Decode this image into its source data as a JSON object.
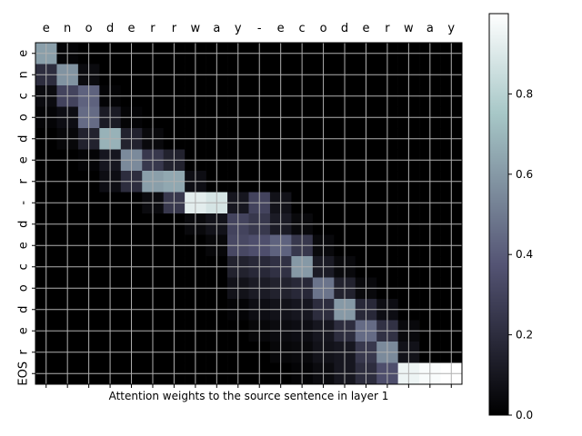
{
  "chart_data": {
    "type": "heatmap",
    "title": "",
    "xlabel": "Attention weights to the source sentence in layer 1",
    "ylabel": "",
    "x_tick_labels": [
      "e",
      "n",
      "o",
      "d",
      "e",
      "r",
      "r",
      "w",
      "a",
      "y",
      "-",
      "e",
      "c",
      "o",
      "d",
      "e",
      "r",
      "w",
      "a",
      "y"
    ],
    "y_tick_labels": [
      "e",
      "n",
      "c",
      "o",
      "d",
      "e",
      "r",
      "-",
      "d",
      "e",
      "c",
      "o",
      "d",
      "e",
      "r",
      "EOS"
    ],
    "colormap": "bone",
    "colorbar": {
      "range": [
        0.0,
        1.0
      ],
      "ticks": [
        "0.0",
        "0.2",
        "0.4",
        "0.6",
        "0.8"
      ]
    },
    "grid": true,
    "values": [
      [
        0.62,
        0.02,
        0.0,
        0.0,
        0.0,
        0.0,
        0.0,
        0.0,
        0.0,
        0.0,
        0.0,
        0.0,
        0.0,
        0.0,
        0.0,
        0.0,
        0.0,
        0.0,
        0.0,
        0.0
      ],
      [
        0.2,
        0.58,
        0.05,
        0.0,
        0.0,
        0.0,
        0.0,
        0.0,
        0.0,
        0.0,
        0.0,
        0.0,
        0.0,
        0.0,
        0.0,
        0.0,
        0.0,
        0.0,
        0.0,
        0.0
      ],
      [
        0.05,
        0.3,
        0.42,
        0.02,
        0.0,
        0.0,
        0.0,
        0.0,
        0.0,
        0.0,
        0.0,
        0.0,
        0.0,
        0.0,
        0.0,
        0.0,
        0.0,
        0.0,
        0.0,
        0.0
      ],
      [
        0.02,
        0.06,
        0.45,
        0.12,
        0.02,
        0.0,
        0.0,
        0.0,
        0.0,
        0.0,
        0.0,
        0.0,
        0.0,
        0.0,
        0.0,
        0.0,
        0.0,
        0.0,
        0.0,
        0.0
      ],
      [
        0.0,
        0.03,
        0.15,
        0.68,
        0.15,
        0.04,
        0.0,
        0.0,
        0.0,
        0.0,
        0.0,
        0.0,
        0.0,
        0.0,
        0.0,
        0.0,
        0.0,
        0.0,
        0.0,
        0.0
      ],
      [
        0.0,
        0.0,
        0.02,
        0.1,
        0.55,
        0.25,
        0.15,
        0.0,
        0.0,
        0.0,
        0.0,
        0.0,
        0.0,
        0.0,
        0.0,
        0.0,
        0.0,
        0.0,
        0.0,
        0.0
      ],
      [
        0.0,
        0.0,
        0.0,
        0.06,
        0.2,
        0.62,
        0.65,
        0.06,
        0.0,
        0.0,
        0.0,
        0.0,
        0.0,
        0.0,
        0.0,
        0.0,
        0.0,
        0.0,
        0.0,
        0.0
      ],
      [
        0.0,
        0.0,
        0.0,
        0.0,
        0.0,
        0.05,
        0.25,
        0.92,
        0.88,
        0.1,
        0.3,
        0.08,
        0.0,
        0.0,
        0.0,
        0.0,
        0.0,
        0.0,
        0.0,
        0.0
      ],
      [
        0.0,
        0.0,
        0.0,
        0.0,
        0.0,
        0.0,
        0.0,
        0.04,
        0.08,
        0.3,
        0.25,
        0.12,
        0.04,
        0.0,
        0.0,
        0.0,
        0.0,
        0.0,
        0.0,
        0.0
      ],
      [
        0.0,
        0.0,
        0.0,
        0.0,
        0.0,
        0.0,
        0.0,
        0.0,
        0.03,
        0.32,
        0.35,
        0.42,
        0.25,
        0.04,
        0.0,
        0.0,
        0.0,
        0.0,
        0.0,
        0.0
      ],
      [
        0.0,
        0.0,
        0.0,
        0.0,
        0.0,
        0.0,
        0.0,
        0.0,
        0.0,
        0.15,
        0.18,
        0.22,
        0.6,
        0.12,
        0.04,
        0.0,
        0.0,
        0.0,
        0.0,
        0.0
      ],
      [
        0.0,
        0.0,
        0.0,
        0.0,
        0.0,
        0.0,
        0.0,
        0.0,
        0.0,
        0.08,
        0.12,
        0.15,
        0.18,
        0.48,
        0.15,
        0.04,
        0.0,
        0.0,
        0.0,
        0.0
      ],
      [
        0.0,
        0.0,
        0.0,
        0.0,
        0.0,
        0.0,
        0.0,
        0.0,
        0.0,
        0.02,
        0.06,
        0.08,
        0.1,
        0.2,
        0.6,
        0.18,
        0.06,
        0.0,
        0.0,
        0.0
      ],
      [
        0.0,
        0.0,
        0.0,
        0.0,
        0.0,
        0.0,
        0.0,
        0.0,
        0.0,
        0.0,
        0.03,
        0.05,
        0.06,
        0.1,
        0.2,
        0.45,
        0.22,
        0.04,
        0.0,
        0.0
      ],
      [
        0.0,
        0.0,
        0.0,
        0.0,
        0.0,
        0.0,
        0.0,
        0.0,
        0.0,
        0.0,
        0.0,
        0.03,
        0.04,
        0.08,
        0.1,
        0.25,
        0.55,
        0.08,
        0.0,
        0.0
      ],
      [
        0.0,
        0.0,
        0.0,
        0.0,
        0.0,
        0.0,
        0.0,
        0.0,
        0.0,
        0.0,
        0.0,
        0.0,
        0.02,
        0.05,
        0.1,
        0.2,
        0.35,
        0.95,
        0.98,
        1.0
      ]
    ]
  }
}
